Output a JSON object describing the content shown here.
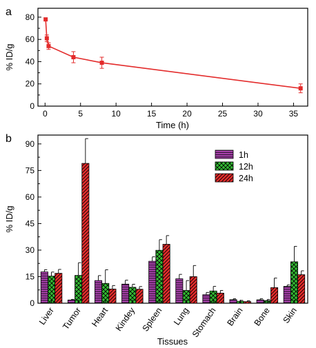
{
  "chart_data": [
    {
      "panel": "a",
      "type": "line",
      "xlabel": "Time (h)",
      "ylabel": "% ID/g",
      "xlim": [
        -1,
        37
      ],
      "ylim": [
        0,
        88
      ],
      "xticks": [
        0,
        5,
        10,
        15,
        20,
        25,
        30,
        35
      ],
      "yticks": [
        0,
        10,
        20,
        30,
        40,
        50,
        60,
        70,
        80
      ],
      "ytick_labels": [
        "0",
        "",
        "20",
        "",
        "40",
        "",
        "60",
        "",
        "80"
      ],
      "color": "#e32b2b",
      "series": [
        {
          "x": [
            0.083,
            0.25,
            0.5,
            4,
            8,
            36
          ],
          "y": [
            78,
            61,
            54,
            44,
            39,
            16
          ],
          "err": [
            0,
            3,
            3,
            5,
            5,
            4
          ]
        }
      ]
    },
    {
      "panel": "b",
      "type": "bar",
      "xlabel": "Tissues",
      "ylabel": "% ID/g",
      "ylim": [
        0,
        95
      ],
      "yticks": [
        0,
        15,
        30,
        45,
        60,
        75,
        90
      ],
      "categories": [
        "Liver",
        "Tumor",
        "Heart",
        "Kindey",
        "Spleen",
        "Lung",
        "Stomach",
        "Brain",
        "Bone",
        "Skin"
      ],
      "legend_position": "top-right",
      "series": [
        {
          "name": "1h",
          "color": "#b044b4",
          "pattern": "horizontal-lines",
          "values": [
            17.7,
            1.8,
            12.8,
            10.8,
            23.7,
            13.8,
            4.8,
            2.0,
            1.9,
            9.5
          ],
          "err": [
            1.2,
            0.4,
            2.8,
            2.2,
            2.5,
            2.5,
            1.3,
            0.5,
            0.7,
            0.8
          ]
        },
        {
          "name": "12h",
          "color": "#33bb33",
          "pattern": "cross-hatch",
          "values": [
            15.3,
            15.7,
            11.2,
            9.0,
            29.9,
            7.2,
            6.9,
            1.1,
            1.5,
            23.4
          ],
          "err": [
            2.3,
            7.2,
            7.7,
            1.7,
            6.0,
            5.6,
            2.6,
            0.5,
            0.6,
            8.7
          ]
        },
        {
          "name": "24h",
          "color": "#e32b2b",
          "pattern": "diagonal-lines",
          "values": [
            16.9,
            79.0,
            8.0,
            7.9,
            33.3,
            15.0,
            5.7,
            0.9,
            8.8,
            16.1
          ],
          "err": [
            2.2,
            14.0,
            2.0,
            1.5,
            4.9,
            6.3,
            1.5,
            0.5,
            5.4,
            2.2
          ]
        }
      ]
    }
  ]
}
